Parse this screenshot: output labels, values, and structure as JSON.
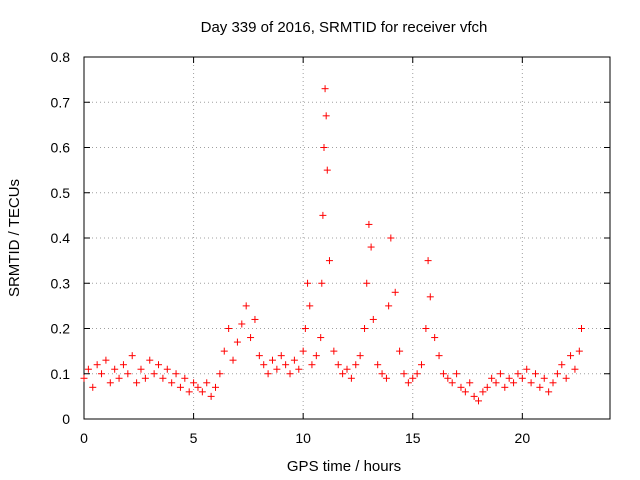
{
  "chart_data": {
    "type": "scatter",
    "title": "Day 339 of 2016, SRMTID for receiver vfch",
    "xlabel": "GPS time / hours",
    "ylabel": "SRMTID / TECUs",
    "xlim": [
      0,
      24
    ],
    "ylim": [
      0,
      0.8
    ],
    "xticks": [
      0,
      5,
      10,
      15,
      20
    ],
    "yticks": [
      0,
      0.1,
      0.2,
      0.3,
      0.4,
      0.5,
      0.6,
      0.7,
      0.8
    ],
    "xtick_labels": [
      "0",
      "5",
      "10",
      "15",
      "20"
    ],
    "ytick_labels": [
      "0",
      "0.1",
      "0.2",
      "0.3",
      "0.4",
      "0.5",
      "0.6",
      "0.7",
      "0.8"
    ],
    "grid": true,
    "marker": "+",
    "marker_color": "#ff0000",
    "series": [
      {
        "name": "SRMTID",
        "x": [
          0.0,
          0.2,
          0.4,
          0.6,
          0.8,
          1.0,
          1.2,
          1.4,
          1.6,
          1.8,
          2.0,
          2.2,
          2.4,
          2.6,
          2.8,
          3.0,
          3.2,
          3.4,
          3.6,
          3.8,
          4.0,
          4.2,
          4.4,
          4.6,
          4.8,
          5.0,
          5.2,
          5.4,
          5.6,
          5.8,
          6.0,
          6.2,
          6.4,
          6.6,
          6.8,
          7.0,
          7.2,
          7.4,
          7.6,
          7.8,
          8.0,
          8.2,
          8.4,
          8.6,
          8.8,
          9.0,
          9.2,
          9.4,
          9.6,
          9.8,
          10.0,
          10.1,
          10.2,
          10.3,
          10.4,
          10.6,
          10.8,
          10.85,
          10.9,
          10.95,
          11.0,
          11.05,
          11.1,
          11.2,
          11.4,
          11.6,
          11.8,
          12.0,
          12.2,
          12.4,
          12.6,
          12.8,
          12.9,
          13.0,
          13.1,
          13.2,
          13.4,
          13.6,
          13.8,
          13.9,
          14.0,
          14.2,
          14.4,
          14.6,
          14.8,
          15.0,
          15.2,
          15.4,
          15.6,
          15.7,
          15.8,
          16.0,
          16.2,
          16.4,
          16.6,
          16.8,
          17.0,
          17.2,
          17.4,
          17.6,
          17.8,
          18.0,
          18.2,
          18.4,
          18.6,
          18.8,
          19.0,
          19.2,
          19.4,
          19.6,
          19.8,
          20.0,
          20.2,
          20.4,
          20.6,
          20.8,
          21.0,
          21.2,
          21.4,
          21.6,
          21.8,
          22.0,
          22.2,
          22.4,
          22.6,
          22.7
        ],
        "y": [
          0.09,
          0.11,
          0.07,
          0.12,
          0.1,
          0.13,
          0.08,
          0.11,
          0.09,
          0.12,
          0.1,
          0.14,
          0.08,
          0.11,
          0.09,
          0.13,
          0.1,
          0.12,
          0.09,
          0.11,
          0.08,
          0.1,
          0.07,
          0.09,
          0.06,
          0.08,
          0.07,
          0.06,
          0.08,
          0.05,
          0.07,
          0.1,
          0.15,
          0.2,
          0.13,
          0.17,
          0.21,
          0.25,
          0.18,
          0.22,
          0.14,
          0.12,
          0.1,
          0.13,
          0.11,
          0.14,
          0.12,
          0.1,
          0.13,
          0.11,
          0.15,
          0.2,
          0.3,
          0.25,
          0.12,
          0.14,
          0.18,
          0.3,
          0.45,
          0.6,
          0.73,
          0.67,
          0.55,
          0.35,
          0.15,
          0.12,
          0.1,
          0.11,
          0.09,
          0.12,
          0.14,
          0.2,
          0.3,
          0.43,
          0.38,
          0.22,
          0.12,
          0.1,
          0.09,
          0.25,
          0.4,
          0.28,
          0.15,
          0.1,
          0.08,
          0.09,
          0.1,
          0.12,
          0.2,
          0.35,
          0.27,
          0.18,
          0.14,
          0.1,
          0.09,
          0.08,
          0.1,
          0.07,
          0.06,
          0.08,
          0.05,
          0.04,
          0.06,
          0.07,
          0.09,
          0.08,
          0.1,
          0.07,
          0.09,
          0.08,
          0.1,
          0.09,
          0.11,
          0.08,
          0.1,
          0.07,
          0.09,
          0.06,
          0.08,
          0.1,
          0.12,
          0.09,
          0.14,
          0.11,
          0.15,
          0.2
        ]
      }
    ]
  }
}
